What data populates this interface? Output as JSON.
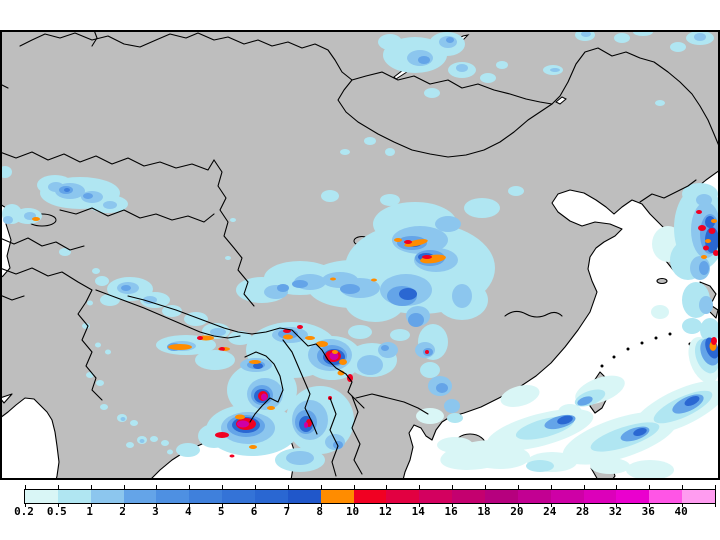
{
  "figure": {
    "kind": "precipitation-shaded-map",
    "region": "Asia",
    "land_color": "#bebebe",
    "sea_color": "#ffffff",
    "line_color": "#000000",
    "background_color": "#ffffff",
    "frame_color": "#000000"
  },
  "colorbar": {
    "labels": [
      "0.2",
      "0.5",
      "1",
      "2",
      "3",
      "4",
      "5",
      "6",
      "7",
      "8",
      "10",
      "12",
      "14",
      "16",
      "18",
      "20",
      "24",
      "28",
      "32",
      "36",
      "40"
    ],
    "segments": [
      {
        "label": "0.2",
        "color": "#d9f6f6"
      },
      {
        "label": "0.5",
        "color": "#b0e6f2"
      },
      {
        "label": "1",
        "color": "#8cc6ee"
      },
      {
        "label": "2",
        "color": "#64a4e8"
      },
      {
        "label": "3",
        "color": "#4e90e2"
      },
      {
        "label": "4",
        "color": "#3f80dc"
      },
      {
        "label": "5",
        "color": "#3473d7"
      },
      {
        "label": "6",
        "color": "#2a67d2"
      },
      {
        "label": "7",
        "color": "#2057ca"
      },
      {
        "label": "8",
        "color": "#ff8c00"
      },
      {
        "label": "10",
        "color": "#f10022"
      },
      {
        "label": "12",
        "color": "#e20041"
      },
      {
        "label": "14",
        "color": "#d3005f"
      },
      {
        "label": "16",
        "color": "#c4006f"
      },
      {
        "label": "18",
        "color": "#b6007e"
      },
      {
        "label": "20",
        "color": "#c20092"
      },
      {
        "label": "24",
        "color": "#ce00a6"
      },
      {
        "label": "28",
        "color": "#dc00ba"
      },
      {
        "label": "32",
        "color": "#ea00ce"
      },
      {
        "label": "36",
        "color": "#ff55e6"
      },
      {
        "label": "40",
        "color": "#ff9cf0"
      }
    ]
  },
  "chart_data": {
    "type": "heatmap",
    "title": "",
    "legend_values": [
      0.2,
      0.5,
      1,
      2,
      3,
      4,
      5,
      6,
      7,
      8,
      10,
      12,
      14,
      16,
      18,
      20,
      24,
      28,
      32,
      36,
      40
    ],
    "legend_position": "bottom",
    "notes_visible_features": [
      "light-to-heavy rain band over Tian Shan / Kazakhstan",
      "rain cluster around Lake Baikal / Siberia",
      "large rain system over central China (Qinghai-Gansu) with orange/red cores",
      "rain band along Himalayas with orange streaks",
      "intense cells (red/magenta >10-24) over NE India, Bangladesh and Bay of Bengal",
      "heavy band with red cores over Korea Strait / Sea of Japan at right edge",
      "diagonal light rain streaks over East and South China Sea",
      "scattered light showers over central India"
    ]
  }
}
